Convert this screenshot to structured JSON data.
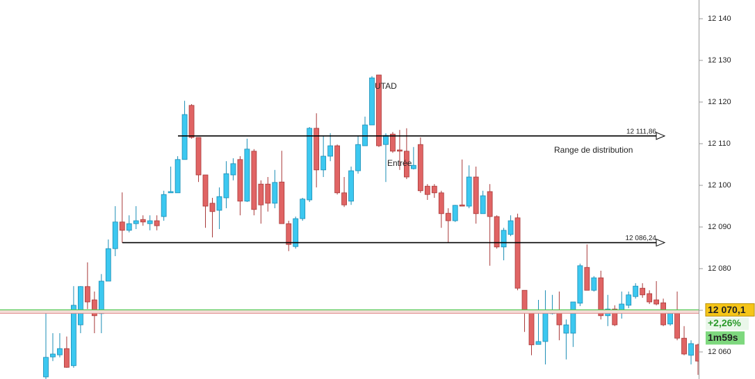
{
  "chart_data": {
    "type": "candlestick",
    "up_color": "#3cc8f0",
    "down_color": "#e06464",
    "ylim": [
      12053.5,
      12144.5
    ],
    "yticks": [
      {
        "value": 12060,
        "label": "12 060"
      },
      {
        "value": 12070,
        "label": "12 070"
      },
      {
        "value": 12080,
        "label": "12 080"
      },
      {
        "value": 12090,
        "label": "12 090"
      },
      {
        "value": 12100,
        "label": "12 100"
      },
      {
        "value": 12110,
        "label": "12 110"
      },
      {
        "value": 12120,
        "label": "12 120"
      },
      {
        "value": 12130,
        "label": "12 130"
      },
      {
        "value": 12140,
        "label": "12 140"
      }
    ],
    "open": [
      12054,
      12058.8,
      12059.3,
      12060.8,
      12056.7,
      12066.5,
      12075.7,
      12072.5,
      12069.2,
      12077,
      12084.8,
      12091.2,
      12089.2,
      12090.8,
      12091.8,
      12090.8,
      12091.5,
      12092.5,
      12098.2,
      12098.2,
      12106.2,
      12119.2,
      12111.5,
      12102.5,
      12095.7,
      12094,
      12097,
      12102.5,
      12106.2,
      12096.2,
      12108.2,
      12100.3,
      12100.3,
      12095.7,
      12100.8,
      12090.8,
      12085.3,
      12092,
      12096.5,
      12113.7,
      12103.7,
      12107,
      12109.5,
      12098.2,
      12096.2,
      12103.5,
      12109.5,
      12114.5,
      12126.5,
      12109.8,
      12112.3,
      12108.5,
      12108.2,
      12104,
      12109.8,
      12099.8,
      12099.8,
      12098.2,
      12093.3,
      12091.5,
      12095.3,
      12095,
      12102,
      12093.2,
      12098.5,
      12092.5,
      12085.2,
      12088.2,
      12092.2,
      12074.8,
      12069.8,
      12061.8,
      12062.5,
      12069.2,
      12069.5,
      12064.5,
      12064.5,
      12071.7,
      12080.3,
      12074.8,
      12077.8,
      12068.7,
      12070.3,
      12069.8,
      12071.2,
      12073.3,
      12075.3,
      12074,
      12072.5,
      12071.8,
      12066.7,
      12069.8,
      12063.3,
      12059.2,
      12061.7
    ],
    "high": [
      12069.5,
      12064.5,
      12064.5,
      12063.7,
      12075.8,
      12075.8,
      12081.5,
      12074.5,
      12078.7,
      12087,
      12095,
      12098.3,
      12092.8,
      12095,
      12092.8,
      12092.8,
      12092.8,
      12098.7,
      12104.5,
      12107,
      12120.3,
      12119.5,
      12111.5,
      12102.5,
      12097,
      12099.5,
      12105.8,
      12106.5,
      12107,
      12111.2,
      12108.7,
      12101.2,
      12102,
      12103.7,
      12108.3,
      12091.5,
      12092.5,
      12097,
      12114,
      12117.3,
      12112,
      12112.5,
      12109.8,
      12102,
      12104.5,
      12111.8,
      12116.5,
      12126.2,
      12126.5,
      12112.5,
      12112.8,
      12113.3,
      12113.7,
      12109.2,
      12111.5,
      12100.3,
      12100.3,
      12098.7,
      12094.5,
      12095.3,
      12106.2,
      12104.8,
      12104.5,
      12098.7,
      12100.3,
      12092.8,
      12089.8,
      12092.8,
      12093.2,
      12074.8,
      12069.8,
      12072.5,
      12074.8,
      12073.7,
      12074.5,
      12067.8,
      12072,
      12081.2,
      12085.8,
      12078.2,
      12079.5,
      12073.7,
      12071.2,
      12074.5,
      12074.5,
      12076.5,
      12076.5,
      12074.8,
      12077,
      12072.8,
      12069.8,
      12074.5,
      12066.2,
      12062.8,
      12062
    ],
    "low": [
      12053.5,
      12057.8,
      12058.7,
      12056.2,
      12056.2,
      12064.5,
      12070.3,
      12064.5,
      12064.5,
      12077,
      12083,
      12086.2,
      12088.7,
      12089.5,
      12090.3,
      12089.2,
      12089.2,
      12091.5,
      12098.2,
      12098.2,
      12106.2,
      12111.2,
      12100.8,
      12089.8,
      12087.5,
      12089.5,
      12094.5,
      12101.2,
      12092.8,
      12096,
      12092.8,
      12090.8,
      12093.7,
      12094.5,
      12090.8,
      12084.2,
      12084.8,
      12091.5,
      12096,
      12099.5,
      12102,
      12105.8,
      12097.8,
      12094.8,
      12095.3,
      12102.8,
      12109.5,
      12114.5,
      12109.2,
      12100.8,
      12107.8,
      12103.7,
      12101.5,
      12103.8,
      12098.2,
      12096.5,
      12097,
      12089.8,
      12086.2,
      12091.2,
      12095,
      12094.5,
      12090.8,
      12093.2,
      12080.7,
      12084.8,
      12082,
      12087.8,
      12074.8,
      12064.8,
      12059.2,
      12062,
      12057,
      12069,
      12062.8,
      12058.2,
      12061.2,
      12071,
      12074.8,
      12074.5,
      12067.8,
      12066.2,
      12066.2,
      12068,
      12070.5,
      12072.8,
      12073,
      12071.5,
      12071.2,
      12066.2,
      12066.3,
      12062.8,
      12059.2,
      12057,
      12054.5
    ],
    "close": [
      12058.7,
      12059.5,
      12060.8,
      12056.3,
      12071.2,
      12075.7,
      12072,
      12068.7,
      12077,
      12084.8,
      12091.2,
      12089.2,
      12090.8,
      12091.5,
      12091.2,
      12091.5,
      12090.3,
      12097.8,
      12098.5,
      12106.2,
      12117,
      12111.5,
      12102.5,
      12095,
      12093.7,
      12097.3,
      12102.8,
      12105.2,
      12096.2,
      12108.7,
      12094.2,
      12095.3,
      12095.7,
      12100.7,
      12090.8,
      12085.8,
      12092,
      12096.7,
      12113.7,
      12103.7,
      12107,
      12109.5,
      12098.2,
      12095.3,
      12103.5,
      12109.8,
      12114.5,
      12125.8,
      12109.5,
      12112,
      12108.2,
      12108.2,
      12102,
      12104.8,
      12098.7,
      12097.8,
      12098.2,
      12093.2,
      12091.5,
      12095.2,
      12095,
      12102,
      12093.2,
      12097.5,
      12092.5,
      12085.2,
      12089.2,
      12091.5,
      12075.3,
      12069.5,
      12061.7,
      12062.5,
      12069.5,
      12070,
      12066.5,
      12066.5,
      12072,
      12080.7,
      12074.8,
      12077.8,
      12068.7,
      12070.3,
      12066.5,
      12071.5,
      12073.7,
      12075.8,
      12073.7,
      12072,
      12071.5,
      12066.5,
      12069.5,
      12063.3,
      12059.5,
      12062,
      12057.8
    ],
    "levels": [
      {
        "value": 12111.86,
        "label": "12 111,86"
      },
      {
        "value": 12086.24,
        "label": "12 086,24"
      }
    ],
    "annotations": [
      "UTAD",
      "Entrée",
      "Range de distribution"
    ],
    "price": {
      "value": 12070.1,
      "label": "12 070,1"
    },
    "change": "+2,26%",
    "timer": "1m59s"
  }
}
